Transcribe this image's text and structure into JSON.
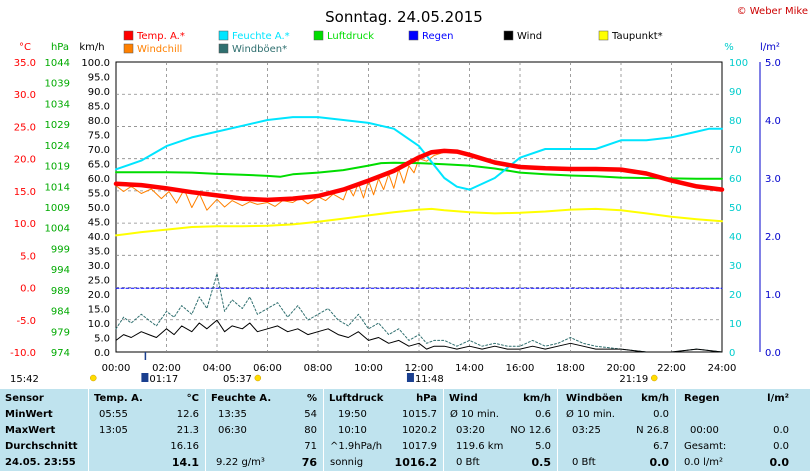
{
  "title": "Sonntag. 24.05.2015",
  "copyright": "© Weber Mike",
  "legend": [
    {
      "label": "Temp. A.*",
      "color": "#ff0000"
    },
    {
      "label": "Feuchte A.*",
      "color": "#00e5ff"
    },
    {
      "label": "Luftdruck",
      "color": "#00dd00"
    },
    {
      "label": "Regen",
      "color": "#0000ff"
    },
    {
      "label": "Wind",
      "color": "#000000"
    },
    {
      "label": "Taupunkt*",
      "color": "#ffff00"
    },
    {
      "label": "Windchill",
      "color": "#ff8000"
    },
    {
      "label": "Windböen*",
      "color": "#2f6f6f"
    }
  ],
  "axis_units": {
    "temp": "°C",
    "pressure": "hPa",
    "wind": "km/h",
    "humidity": "%",
    "rain": "l/m²"
  },
  "chart_data": {
    "type": "line",
    "x_ticks": [
      "00:00",
      "02:00",
      "04:00",
      "06:00",
      "08:00",
      "10:00",
      "12:00",
      "14:00",
      "16:00",
      "18:00",
      "20:00",
      "22:00",
      "24:00"
    ],
    "x_range": [
      0,
      24
    ],
    "axes": {
      "temp": {
        "range": [
          -10,
          35
        ],
        "ticks": [
          "35.0",
          "30.0",
          "25.0",
          "20.0",
          "15.0",
          "10.0",
          "5.0",
          "0.0",
          "-5.0",
          "-10.0"
        ],
        "color": "#ff0000"
      },
      "pressure": {
        "range": [
          974,
          1044
        ],
        "ticks": [
          "1044",
          "1039",
          "1034",
          "1029",
          "1024",
          "1019",
          "1014",
          "1009",
          "1004",
          "999",
          "994",
          "989",
          "984",
          "979",
          "974"
        ],
        "color": "#00aa00"
      },
      "wind": {
        "range": [
          0,
          100
        ],
        "ticks": [
          "100.0",
          "95.0",
          "90.0",
          "85.0",
          "80.0",
          "75.0",
          "70.0",
          "65.0",
          "60.0",
          "55.0",
          "50.0",
          "45.0",
          "40.0",
          "35.0",
          "30.0",
          "25.0",
          "20.0",
          "15.0",
          "10.0",
          "5.0",
          "0.0"
        ],
        "color": "#000000"
      },
      "humidity": {
        "range": [
          0,
          100
        ],
        "ticks": [
          "100",
          "90",
          "80",
          "70",
          "60",
          "50",
          "40",
          "30",
          "20",
          "10",
          "0"
        ],
        "color": "#00cccc"
      },
      "rain": {
        "range": [
          0,
          5
        ],
        "ticks": [
          "5.0",
          "4.0",
          "3.0",
          "2.0",
          "1.0",
          "0.0"
        ],
        "color": "#0000cc"
      }
    },
    "series": [
      {
        "name": "Temp. A.*",
        "axis": "temp",
        "color": "#ff0000",
        "width": 4.5,
        "x": [
          0,
          1,
          2,
          3,
          4,
          5,
          6,
          7,
          8,
          9,
          10,
          11,
          12,
          12.5,
          13,
          13.5,
          14,
          15,
          16,
          17,
          18,
          19,
          20,
          21,
          22,
          23,
          24
        ],
        "y": [
          16.1,
          15.9,
          15.4,
          14.8,
          14.3,
          13.8,
          13.6,
          13.8,
          14.2,
          15.2,
          16.6,
          18.1,
          20.2,
          21.0,
          21.2,
          21.1,
          20.6,
          19.4,
          18.7,
          18.5,
          18.4,
          18.4,
          18.3,
          17.7,
          16.6,
          15.7,
          15.2
        ]
      },
      {
        "name": "Feuchte A.*",
        "axis": "humidity",
        "color": "#00e5ff",
        "width": 2,
        "x": [
          0,
          1,
          2,
          3,
          4,
          5,
          6,
          7,
          8,
          9,
          10,
          11,
          12,
          13,
          13.5,
          14,
          15,
          16,
          17,
          18,
          19,
          20,
          21,
          22,
          23,
          23.5,
          24
        ],
        "y": [
          63,
          66,
          71,
          74,
          76,
          78,
          80,
          81,
          81,
          80,
          79,
          77,
          71,
          60,
          57,
          56,
          60,
          67,
          70,
          70,
          70,
          73,
          73,
          74,
          76,
          77,
          77
        ]
      },
      {
        "name": "Luftdruck",
        "axis": "pressure",
        "color": "#00dd00",
        "width": 2,
        "x": [
          0,
          1,
          2,
          3,
          4,
          5,
          6,
          6.5,
          7,
          8,
          9,
          10,
          10.5,
          11,
          12,
          13,
          14,
          15,
          16,
          17,
          18,
          19,
          20,
          21,
          22,
          23,
          24
        ],
        "y": [
          1017.4,
          1017.4,
          1017.4,
          1017.3,
          1017.0,
          1016.8,
          1016.5,
          1016.3,
          1016.9,
          1017.3,
          1017.9,
          1019.0,
          1019.6,
          1019.7,
          1019.6,
          1019.3,
          1019.0,
          1018.3,
          1017.3,
          1016.9,
          1016.6,
          1016.4,
          1016.1,
          1016.0,
          1015.9,
          1015.8,
          1015.8
        ]
      },
      {
        "name": "Taupunkt*",
        "axis": "temp",
        "color": "#ffff00",
        "width": 2,
        "x": [
          0,
          1,
          2,
          3,
          4,
          5,
          6,
          7,
          8,
          9,
          10,
          11,
          12,
          12.5,
          13,
          14,
          15,
          16,
          17,
          18,
          19,
          20,
          21,
          22,
          23,
          24
        ],
        "y": [
          8.1,
          8.6,
          9.0,
          9.4,
          9.5,
          9.5,
          9.6,
          9.8,
          10.2,
          10.7,
          11.2,
          11.7,
          12.1,
          12.2,
          12.0,
          11.7,
          11.5,
          11.6,
          11.8,
          12.1,
          12.2,
          12.0,
          11.5,
          11.0,
          10.6,
          10.3
        ]
      },
      {
        "name": "Windchill",
        "axis": "temp",
        "color": "#ff8000",
        "width": 1,
        "x": [
          0,
          0.3,
          0.6,
          1.0,
          1.4,
          1.8,
          2.1,
          2.4,
          2.7,
          3.0,
          3.3,
          3.6,
          4.0,
          4.3,
          4.6,
          5.0,
          5.3,
          5.6,
          6.0,
          6.3,
          6.6,
          7.0,
          7.3,
          7.6,
          8.0,
          8.3,
          8.6,
          9.0,
          9.2,
          9.4,
          9.6,
          9.8,
          10.0,
          10.2,
          10.4,
          10.6,
          10.8,
          11.0,
          11.2,
          11.4,
          11.6,
          11.8,
          12.0,
          12.3,
          12.6,
          13.0
        ],
        "y": [
          15.8,
          14.9,
          15.7,
          14.6,
          15.3,
          13.8,
          14.9,
          13.1,
          15.2,
          12.4,
          14.6,
          12.0,
          13.7,
          12.5,
          13.5,
          12.7,
          13.3,
          12.9,
          13.2,
          12.6,
          13.5,
          13.2,
          13.9,
          13.0,
          14.1,
          13.5,
          14.5,
          13.6,
          15.6,
          14.2,
          16.2,
          13.9,
          16.6,
          14.4,
          16.9,
          15.2,
          17.6,
          15.4,
          18.4,
          16.2,
          18.9,
          17.8,
          20.0,
          19.6,
          20.5,
          21.0
        ]
      },
      {
        "name": "Wind",
        "axis": "wind",
        "color": "#000000",
        "width": 1,
        "x": [
          0,
          0.3,
          0.6,
          1.0,
          1.3,
          1.6,
          2.0,
          2.3,
          2.6,
          3.0,
          3.3,
          3.6,
          4.0,
          4.3,
          4.6,
          5.0,
          5.3,
          5.6,
          6.0,
          6.4,
          6.8,
          7.2,
          7.6,
          8.0,
          8.4,
          8.8,
          9.2,
          9.6,
          10.0,
          10.4,
          10.8,
          11.2,
          11.6,
          12.0,
          12.3,
          12.6,
          13.0,
          13.5,
          14.0,
          14.5,
          15.0,
          15.5,
          16.0,
          16.5,
          17.0,
          17.5,
          18.0,
          18.5,
          19.0,
          20.0,
          21.0,
          22.0,
          23.0,
          24.0
        ],
        "y": [
          4,
          6,
          5,
          7,
          6,
          5,
          8,
          6,
          9,
          7,
          10,
          8,
          11,
          7,
          9,
          8,
          10,
          7,
          8,
          9,
          7,
          8,
          6,
          7,
          8,
          6,
          5,
          7,
          4,
          5,
          3,
          4,
          2,
          3,
          1,
          2,
          2,
          1,
          2,
          1,
          2,
          1,
          1,
          2,
          1,
          2,
          3,
          2,
          1,
          1,
          0,
          0,
          1,
          0
        ]
      },
      {
        "name": "Windböen*",
        "axis": "wind",
        "color": "#2f6f6f",
        "width": 1,
        "dash": "2,2",
        "x": [
          0,
          0.3,
          0.6,
          1.0,
          1.3,
          1.6,
          2.0,
          2.3,
          2.6,
          3.0,
          3.3,
          3.6,
          4.0,
          4.3,
          4.6,
          5.0,
          5.3,
          5.6,
          6.0,
          6.4,
          6.8,
          7.2,
          7.6,
          8.0,
          8.4,
          8.8,
          9.2,
          9.6,
          10.0,
          10.4,
          10.8,
          11.2,
          11.6,
          12.0,
          12.3,
          12.6,
          13.0,
          13.5,
          14.0,
          14.5,
          15.0,
          15.5,
          16.0,
          16.5,
          17.0,
          17.5,
          18.0,
          18.5,
          19.0,
          20.0,
          21.0,
          22.0,
          23.0,
          24.0
        ],
        "y": [
          8,
          12,
          10,
          13,
          11,
          9,
          14,
          12,
          16,
          13,
          19,
          15,
          27,
          14,
          18,
          15,
          19,
          13,
          15,
          17,
          12,
          16,
          11,
          13,
          15,
          11,
          9,
          13,
          8,
          10,
          6,
          8,
          4,
          6,
          3,
          4,
          4,
          2,
          4,
          2,
          3,
          2,
          2,
          4,
          2,
          3,
          5,
          3,
          2,
          1,
          0,
          0,
          1,
          0
        ]
      },
      {
        "name": "Regen",
        "axis": "rain",
        "color": "#0000ff",
        "width": 1,
        "dash": "3,2",
        "x": [
          0,
          24
        ],
        "y": [
          1.1,
          1.1
        ]
      }
    ]
  },
  "sun_markers": {
    "sunrise": "05:37",
    "sunset": "21:19",
    "rain_start": "01:17",
    "rain_end": "11:48",
    "left_time": "15:42"
  },
  "stats": {
    "headers": {
      "sensor": "Sensor",
      "temp": "Temp. A.",
      "temp_unit": "°C",
      "hum": "Feuchte A.",
      "hum_unit": "%",
      "press": "Luftdruck",
      "press_unit": "hPa",
      "wind": "Wind",
      "wind_unit": "km/h",
      "gust": "Windböen",
      "gust_unit": "km/h",
      "rain": "Regen",
      "rain_unit": "l/m²"
    },
    "labels": {
      "min": "MinWert",
      "max": "MaxWert",
      "avg": "Durchschnitt",
      "now": "24.05. 23:55"
    },
    "temp": {
      "min_t": "05:55",
      "min": "12.6",
      "max_t": "13:05",
      "max": "21.3",
      "avg": "16.16",
      "now": "14.1"
    },
    "hum": {
      "min_t": "13:35",
      "min": "54",
      "max_t": "06:30",
      "max": "80",
      "avg": "71",
      "extra": "9.22 g/m³",
      "now": "76"
    },
    "press": {
      "min_t": "19:50",
      "min": "1015.7",
      "max_t": "10:10",
      "max": "1020.2",
      "trend": "^1.9hPa/h",
      "avg": "1017.9",
      "cond": "sonnig",
      "now": "1016.2"
    },
    "wind": {
      "r1a": "Ø 10 min.",
      "r1b": "0.6",
      "r2a": "03:20",
      "r2b": "NO 12.6",
      "r3a": "119.6 km",
      "r3b": "5.0",
      "r4a": "0 Bft",
      "r4b": "0.5"
    },
    "gust": {
      "r1a": "Ø 10 min.",
      "r1b": "0.0",
      "r2a": "03:25",
      "r2b": "N 26.8",
      "r3b": "6.7",
      "r4a": "0 Bft",
      "r4b": "0.0"
    },
    "rain": {
      "r2a": "00:00",
      "r2b": "0.0",
      "r3a": "Gesamt:",
      "r3b": "0.0",
      "r4a": "0.0 l/m²",
      "r4b": "0.0"
    }
  }
}
